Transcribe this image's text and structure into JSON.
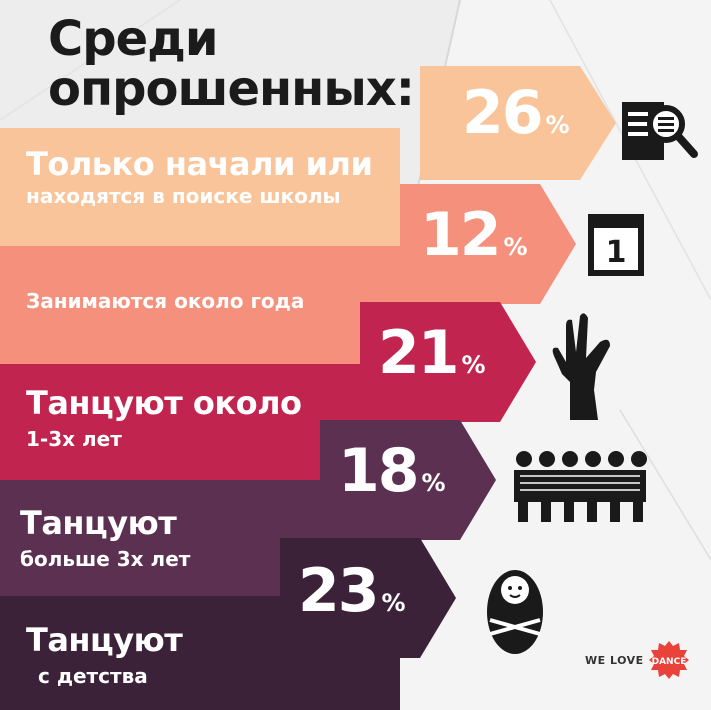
{
  "title_line1": "Среди",
  "title_line2": "опрошенных:",
  "chart_data": {
    "type": "bar",
    "categories": [
      "Только начали или находятся в поиске школы",
      "Занимаются около года",
      "Танцуют около 1-3х лет",
      "Танцуют больше 3х лет",
      "Танцуют с детства"
    ],
    "values": [
      26,
      12,
      21,
      18,
      23
    ],
    "unit": "%"
  },
  "rows": [
    {
      "line1": "Только начали или",
      "line2": "находятся в поиске школы",
      "value": "26",
      "sign": "%",
      "color": "#f9c49a",
      "icon": "magnifier-document-icon"
    },
    {
      "line1": "",
      "line2": "Занимаются около года",
      "value": "12",
      "sign": "%",
      "color": "#f5907c",
      "icon": "calendar-icon"
    },
    {
      "line1": "Танцуют около",
      "line2": "1-3х лет",
      "value": "21",
      "sign": "%",
      "color": "#c0244f",
      "icon": "hand-gesture-icon"
    },
    {
      "line1": "Танцуют",
      "line2": "больше 3х лет",
      "value": "18",
      "sign": "%",
      "color": "#5c3050",
      "icon": "people-group-icon"
    },
    {
      "line1": "Танцуют",
      "line2": "с детства",
      "value": "23",
      "sign": "%",
      "color": "#3c2238",
      "icon": "baby-icon"
    }
  ],
  "brand": {
    "prefix": "WE LOVE",
    "word": "DANCE",
    "color": "#e8423a"
  }
}
